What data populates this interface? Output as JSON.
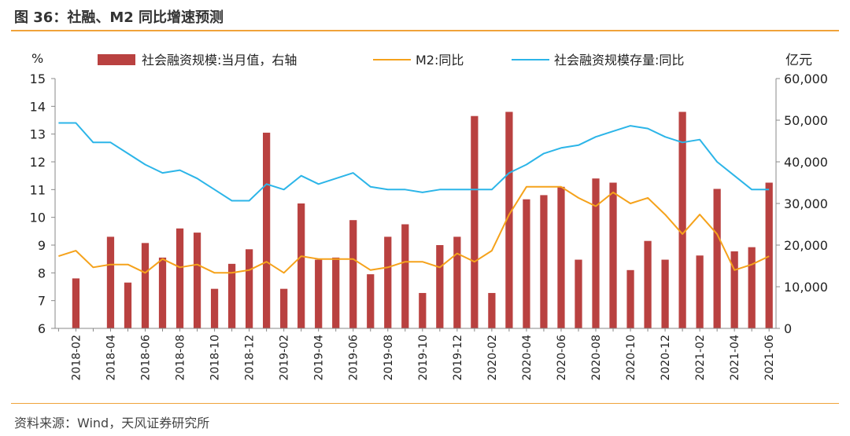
{
  "title": "图 36：社融、M2 同比增速预测",
  "source": "资料来源：Wind，天风证券研究所",
  "chart_data": {
    "type": "bar+line",
    "left_unit": "%",
    "right_unit": "亿元",
    "y_left_range": [
      6,
      15
    ],
    "y_left_ticks": [
      "6",
      "7",
      "8",
      "9",
      "10",
      "11",
      "12",
      "13",
      "14",
      "15"
    ],
    "y_right_range": [
      0,
      60000
    ],
    "y_right_ticks": [
      "0",
      "10,000",
      "20,000",
      "30,000",
      "40,000",
      "50,000",
      "60,000"
    ],
    "x_tick_labels": [
      "2018-02",
      "2018-04",
      "2018-06",
      "2018-08",
      "2018-10",
      "2018-12",
      "2019-02",
      "2019-04",
      "2019-06",
      "2019-08",
      "2019-10",
      "2019-12",
      "2020-02",
      "2020-04",
      "2020-06",
      "2020-08",
      "2020-10",
      "2020-12",
      "2021-02",
      "2021-04",
      "2021-06"
    ],
    "colors": {
      "bar": "#b94140",
      "m2": "#f5a21b",
      "tsf": "#2cb5e8"
    },
    "legend": {
      "bar": "社会融资规模:当月值，右轴",
      "m2": "M2:同比",
      "tsf": "社会融资规模存量:同比",
      "placement": "top"
    },
    "months": [
      "2018-01",
      "2018-02",
      "2018-03",
      "2018-04",
      "2018-05",
      "2018-06",
      "2018-07",
      "2018-08",
      "2018-09",
      "2018-10",
      "2018-11",
      "2018-12",
      "2019-01",
      "2019-02",
      "2019-03",
      "2019-04",
      "2019-05",
      "2019-06",
      "2019-07",
      "2019-08",
      "2019-09",
      "2019-10",
      "2019-11",
      "2019-12",
      "2020-01",
      "2020-02",
      "2020-03",
      "2020-04",
      "2020-05",
      "2020-06",
      "2020-07",
      "2020-08",
      "2020-09",
      "2020-10",
      "2020-11",
      "2020-12",
      "2021-01",
      "2021-02",
      "2021-03",
      "2021-04",
      "2021-05",
      "2021-06"
    ],
    "series": [
      {
        "name": "社会融资规模:当月值，右轴",
        "axis": "right",
        "kind": "bar",
        "values": [
          null,
          12000,
          null,
          22000,
          11000,
          20500,
          17000,
          24000,
          23000,
          9500,
          15500,
          19000,
          47000,
          9500,
          30000,
          16500,
          17000,
          26000,
          13000,
          22000,
          25000,
          8500,
          20000,
          22000,
          51000,
          8500,
          52000,
          31000,
          32000,
          34000,
          16500,
          36000,
          35000,
          14000,
          21000,
          16500,
          52000,
          17500,
          33500,
          18500,
          19500,
          35000
        ]
      },
      {
        "name": "M2:同比",
        "axis": "left",
        "kind": "line",
        "values": [
          8.6,
          8.8,
          8.2,
          8.3,
          8.3,
          8.0,
          8.5,
          8.2,
          8.3,
          8.0,
          8.0,
          8.1,
          8.4,
          8.0,
          8.6,
          8.5,
          8.5,
          8.5,
          8.1,
          8.2,
          8.4,
          8.4,
          8.2,
          8.7,
          8.4,
          8.8,
          10.1,
          11.1,
          11.1,
          11.1,
          10.7,
          10.4,
          10.9,
          10.5,
          10.7,
          10.1,
          9.4,
          10.1,
          9.4,
          8.1,
          8.3,
          8.6
        ]
      },
      {
        "name": "社会融资规模存量:同比",
        "axis": "left",
        "kind": "line",
        "values": [
          13.4,
          13.4,
          12.7,
          12.7,
          12.3,
          11.9,
          11.6,
          11.7,
          11.4,
          11.0,
          10.6,
          10.6,
          11.2,
          11.0,
          11.5,
          11.2,
          11.4,
          11.6,
          11.1,
          11.0,
          11.0,
          10.9,
          11.0,
          11.0,
          11.0,
          11.0,
          11.6,
          11.9,
          12.3,
          12.5,
          12.6,
          12.9,
          13.1,
          13.3,
          13.2,
          12.9,
          12.7,
          12.8,
          12.0,
          11.5,
          11.0,
          11.0
        ]
      }
    ]
  }
}
